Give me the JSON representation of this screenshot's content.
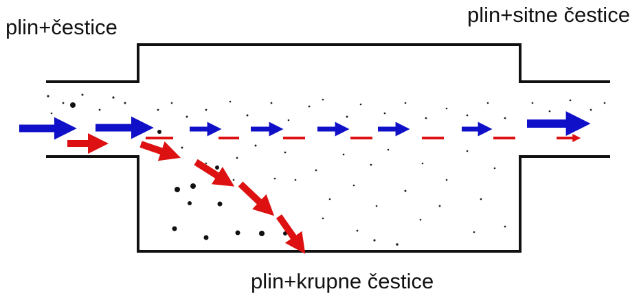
{
  "labels": {
    "inlet": "plin+čestice",
    "outlet_fine": "plin+sitne čestice",
    "outlet_coarse": "plin+krupne čestice"
  },
  "colors": {
    "gas_flow": "#1010c8",
    "coarse_particle_path": "#dd1111",
    "wall": "#111111",
    "particle": "#111111"
  },
  "icons": [
    "gas-flow-arrow",
    "particle-trajectory-arrow",
    "particle-dot"
  ]
}
